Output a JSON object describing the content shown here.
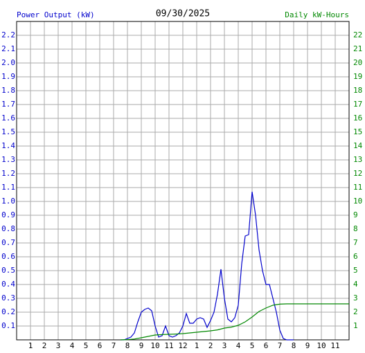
{
  "chart_data": {
    "type": "line",
    "title": "09/30/2025",
    "y_label": "Power Output (kW)",
    "y2_label": "Daily kW-Hours",
    "grid": true,
    "xlim": [
      0,
      24
    ],
    "xticks": [
      1,
      2,
      3,
      4,
      5,
      6,
      7,
      8,
      9,
      10,
      11,
      12,
      {
        "value": 13,
        "label": "1"
      },
      {
        "value": 14,
        "label": "2"
      },
      {
        "value": 15,
        "label": "3"
      },
      {
        "value": 16,
        "label": "4"
      },
      {
        "value": 17,
        "label": "5"
      },
      {
        "value": 18,
        "label": "6"
      },
      {
        "value": 19,
        "label": "7"
      },
      {
        "value": 20,
        "label": "8"
      },
      {
        "value": 21,
        "label": "9"
      },
      {
        "value": 22,
        "label": "10"
      },
      {
        "value": 23,
        "label": "11"
      }
    ],
    "ylim": [
      0,
      2.3
    ],
    "yticks": [
      0.1,
      0.2,
      0.3,
      0.4,
      0.5,
      0.6,
      0.7,
      0.8,
      0.9,
      {
        "value": 1.0,
        "label": "1.0"
      },
      1.1,
      1.2,
      1.3,
      1.4,
      1.5,
      1.6,
      1.7,
      1.8,
      1.9,
      {
        "value": 2.0,
        "label": "2.0"
      },
      2.1,
      2.2
    ],
    "y2lim": [
      0,
      23
    ],
    "y2ticks": [
      1,
      2,
      3,
      4,
      5,
      6,
      7,
      8,
      9,
      10,
      11,
      12,
      13,
      14,
      15,
      16,
      17,
      18,
      19,
      20,
      21,
      22
    ],
    "series": [
      {
        "color": "#0000cc",
        "x": [
          7.5,
          7.75,
          8,
          8.25,
          8.5,
          8.75,
          9,
          9.25,
          9.5,
          9.75,
          10,
          10.25,
          10.5,
          10.75,
          11,
          11.25,
          11.5,
          11.75,
          12,
          12.25,
          12.5,
          12.75,
          13,
          13.25,
          13.5,
          13.75,
          14,
          14.25,
          14.5,
          14.75,
          15,
          15.25,
          15.5,
          15.75,
          16,
          16.25,
          16.5,
          16.75,
          17,
          17.25,
          17.5,
          17.75,
          18,
          18.25,
          18.5,
          18.75,
          19,
          19.25,
          19.5,
          19.75,
          20
        ],
        "values": [
          0,
          0,
          0.01,
          0.02,
          0.05,
          0.13,
          0.2,
          0.22,
          0.23,
          0.21,
          0.1,
          0.02,
          0.03,
          0.1,
          0.03,
          0.02,
          0.03,
          0.05,
          0.1,
          0.19,
          0.12,
          0.12,
          0.15,
          0.16,
          0.15,
          0.09,
          0.14,
          0.2,
          0.33,
          0.51,
          0.3,
          0.15,
          0.13,
          0.16,
          0.25,
          0.55,
          0.75,
          0.76,
          1.07,
          0.9,
          0.65,
          0.5,
          0.4,
          0.4,
          0.3,
          0.2,
          0.07,
          0.01,
          0,
          0,
          0
        ]
      },
      {
        "color": "#008800",
        "axis": "y2",
        "x": [
          7.5,
          8,
          8.5,
          9,
          9.5,
          10,
          10.5,
          11,
          11.5,
          12,
          12.5,
          13,
          13.5,
          14,
          14.5,
          15,
          15.5,
          16,
          16.5,
          17,
          17.5,
          18,
          18.5,
          19,
          19.5,
          24
        ],
        "values": [
          0,
          0.02,
          0.06,
          0.15,
          0.25,
          0.35,
          0.38,
          0.4,
          0.42,
          0.45,
          0.5,
          0.55,
          0.6,
          0.65,
          0.72,
          0.85,
          0.92,
          1.05,
          1.3,
          1.65,
          2.05,
          2.3,
          2.5,
          2.58,
          2.6,
          2.6
        ]
      }
    ]
  }
}
